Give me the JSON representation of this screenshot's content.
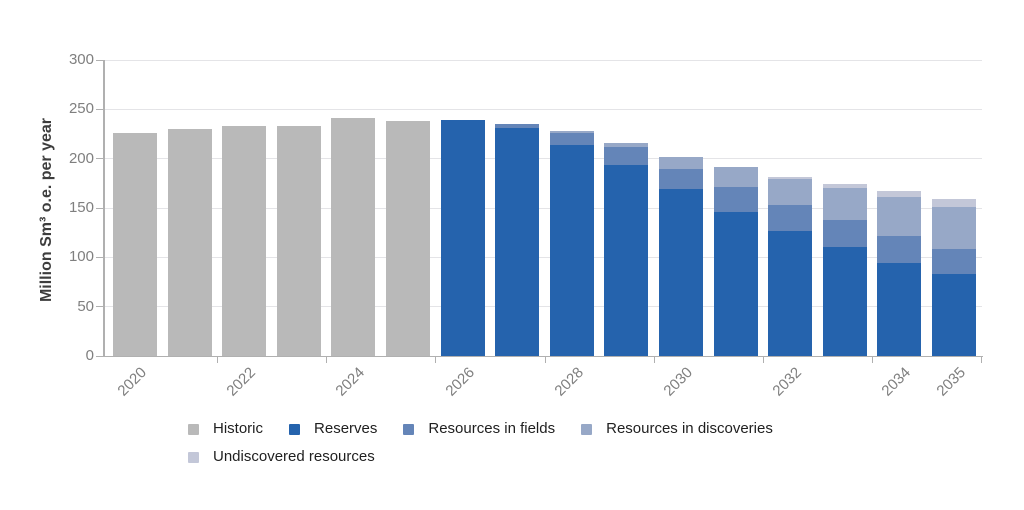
{
  "chart_data": {
    "type": "bar",
    "stacked": true,
    "title": "",
    "ylabel": "Million Sm³ o.e. per year",
    "xlabel": "",
    "ylim": [
      0,
      300
    ],
    "yticks": [
      0,
      50,
      100,
      150,
      200,
      250,
      300
    ],
    "grid": true,
    "legend_position": "bottom",
    "categories": [
      "2020",
      "2021",
      "2022",
      "2023",
      "2024",
      "2025",
      "2026",
      "2027",
      "2028",
      "2029",
      "2030",
      "2031",
      "2032",
      "2033",
      "2034",
      "2035"
    ],
    "xticks": [
      {
        "label": "2020",
        "index": 0
      },
      {
        "label": "2022",
        "index": 2
      },
      {
        "label": "2024",
        "index": 4
      },
      {
        "label": "2026",
        "index": 6
      },
      {
        "label": "2028",
        "index": 8
      },
      {
        "label": "2030",
        "index": 10
      },
      {
        "label": "2032",
        "index": 12
      },
      {
        "label": "2034",
        "index": 14
      },
      {
        "label": "2035",
        "index": 15
      }
    ],
    "series": [
      {
        "name": "Historic",
        "color": "#b9b9b9",
        "values": [
          226,
          230,
          233,
          233,
          241,
          238,
          0,
          0,
          0,
          0,
          0,
          0,
          0,
          0,
          0,
          0
        ]
      },
      {
        "name": "Reserves",
        "color": "#2563ad",
        "values": [
          0,
          0,
          0,
          0,
          0,
          0,
          239,
          231,
          214,
          194,
          169,
          146,
          127,
          110,
          94,
          83
        ]
      },
      {
        "name": "Resources in fields",
        "color": "#6485b8",
        "values": [
          0,
          0,
          0,
          0,
          0,
          0,
          0,
          4,
          12,
          18,
          21,
          25,
          26,
          28,
          28,
          25
        ]
      },
      {
        "name": "Resources in discoveries",
        "color": "#97a8c7",
        "values": [
          0,
          0,
          0,
          0,
          0,
          0,
          0,
          0,
          2,
          4,
          12,
          21,
          26,
          32,
          39,
          43
        ]
      },
      {
        "name": "Undiscovered resources",
        "color": "#c3c7d8",
        "values": [
          0,
          0,
          0,
          0,
          0,
          0,
          0,
          0,
          0,
          0,
          0,
          0,
          2,
          4,
          6,
          8
        ]
      }
    ],
    "colors": {
      "grid": "#e4e4e7",
      "axis": "#b0b0b0",
      "tick_label": "#7f7f7f",
      "axis_label": "#3d3d3d",
      "legend_text": "#1f1f1f"
    }
  }
}
